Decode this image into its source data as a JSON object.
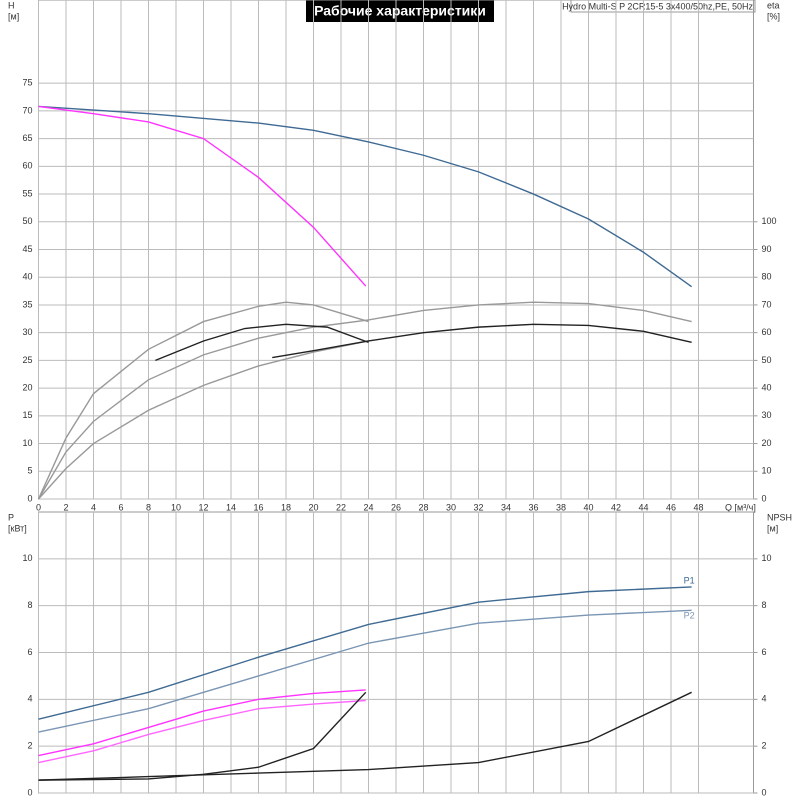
{
  "header": {
    "title": "Рабочие характеристики",
    "model": "Hydro Multi-S P 2CR15-5 3x400/50hz,PE, 50Hz"
  },
  "chart_data": [
    {
      "type": "line",
      "ylabel": "H",
      "yunit": "[м]",
      "y2label": "eta",
      "y2unit": "[%]",
      "xlabel": "Q [м³/ч]",
      "xlim": [
        0,
        52
      ],
      "xticks": [
        0,
        2,
        4,
        6,
        8,
        10,
        12,
        14,
        16,
        18,
        20,
        22,
        24,
        26,
        28,
        30,
        32,
        34,
        36,
        38,
        40,
        42,
        44,
        46,
        48
      ],
      "ylim": [
        0,
        90
      ],
      "yticks": [
        0,
        5,
        10,
        15,
        20,
        25,
        30,
        35,
        40,
        45,
        50,
        55,
        60,
        65,
        70,
        75
      ],
      "y2lim": [
        0,
        180
      ],
      "y2ticks": [
        0,
        10,
        20,
        30,
        40,
        50,
        60,
        70,
        80,
        90,
        100
      ],
      "grid": true,
      "series": [
        {
          "color": "#3f6a93",
          "x": [
            0,
            8,
            16,
            20,
            24,
            28,
            32,
            36,
            40,
            44,
            47.5
          ],
          "values": [
            70.8,
            69.5,
            67.8,
            66.5,
            64.4,
            62,
            59,
            55,
            50.5,
            44.5,
            38.3
          ]
        },
        {
          "color": "#ff33ff",
          "x": [
            0,
            4,
            8,
            12,
            16,
            20,
            23.8
          ],
          "values": [
            70.8,
            69.5,
            68,
            65,
            58,
            49,
            38.4
          ]
        },
        {
          "color": "#999999",
          "axis": "y2",
          "x": [
            0,
            2,
            4,
            8,
            12,
            16,
            18,
            20,
            24
          ],
          "values": [
            0,
            22,
            38,
            54,
            64,
            69.5,
            71,
            70,
            64
          ]
        },
        {
          "color": "#999999",
          "axis": "y2",
          "x": [
            0,
            2,
            4,
            8,
            12,
            16,
            20,
            24,
            28,
            32,
            36,
            40,
            44,
            47.5
          ],
          "values": [
            0,
            17,
            28,
            43,
            52,
            58,
            62,
            64.6,
            68,
            70,
            71,
            70.5,
            68,
            64
          ]
        },
        {
          "color": "#999999",
          "axis": "y2",
          "x": [
            0,
            2,
            4,
            8,
            12,
            16,
            20,
            24
          ],
          "values": [
            0,
            11,
            20,
            32,
            41,
            48,
            53,
            57
          ]
        },
        {
          "color": "#222222",
          "axis": "y2",
          "x": [
            8.5,
            12,
            15,
            18,
            21,
            24
          ],
          "values": [
            50,
            57,
            61.5,
            63,
            62,
            56.5
          ]
        },
        {
          "color": "#222222",
          "axis": "y2",
          "x": [
            17,
            20,
            24,
            28,
            32,
            36,
            40,
            44,
            47.5
          ],
          "values": [
            51,
            53.5,
            57,
            60,
            62,
            63,
            62.6,
            60.5,
            56.5
          ]
        }
      ]
    },
    {
      "type": "line",
      "ylabel": "P",
      "yunit": "[кВт]",
      "y2label": "NPSH",
      "y2unit": "[м]",
      "xlim": [
        0,
        52
      ],
      "xticks": [
        0,
        2,
        4,
        6,
        8,
        10,
        12,
        14,
        16,
        18,
        20,
        22,
        24,
        26,
        28,
        30,
        32,
        34,
        36,
        38,
        40,
        42,
        44,
        46,
        48
      ],
      "ylim": [
        0,
        12
      ],
      "yticks": [
        0,
        2,
        4,
        6,
        8,
        10
      ],
      "y2lim": [
        0,
        12
      ],
      "y2ticks": [
        0,
        2,
        4,
        6,
        8,
        10
      ],
      "grid": true,
      "series": [
        {
          "name": "P1",
          "color": "#3f6a93",
          "x": [
            0,
            8,
            16,
            24,
            32,
            40,
            47.5
          ],
          "values": [
            3.15,
            4.3,
            5.8,
            7.2,
            8.15,
            8.6,
            8.8
          ]
        },
        {
          "name": "P2",
          "color": "#7a96b4",
          "x": [
            0,
            8,
            16,
            24,
            32,
            40,
            47.5
          ],
          "values": [
            2.6,
            3.6,
            5.0,
            6.4,
            7.25,
            7.6,
            7.8
          ]
        },
        {
          "color": "#ff33ff",
          "x": [
            0,
            4,
            8,
            12,
            16,
            20,
            23.8
          ],
          "values": [
            1.6,
            2.1,
            2.8,
            3.5,
            4.0,
            4.25,
            4.4
          ]
        },
        {
          "color": "#ff66ff",
          "x": [
            0,
            4,
            8,
            12,
            16,
            20,
            23.8
          ],
          "values": [
            1.3,
            1.8,
            2.5,
            3.1,
            3.6,
            3.8,
            3.95
          ]
        },
        {
          "color": "#222222",
          "axis": "y2",
          "x": [
            0,
            8,
            12,
            16,
            20,
            23.8
          ],
          "values": [
            0.55,
            0.6,
            0.8,
            1.1,
            1.9,
            4.3
          ]
        },
        {
          "color": "#222222",
          "axis": "y2",
          "x": [
            0,
            8,
            16,
            24,
            32,
            40,
            47.5
          ],
          "values": [
            0.55,
            0.7,
            0.85,
            1.0,
            1.3,
            2.2,
            4.3
          ]
        }
      ]
    }
  ]
}
